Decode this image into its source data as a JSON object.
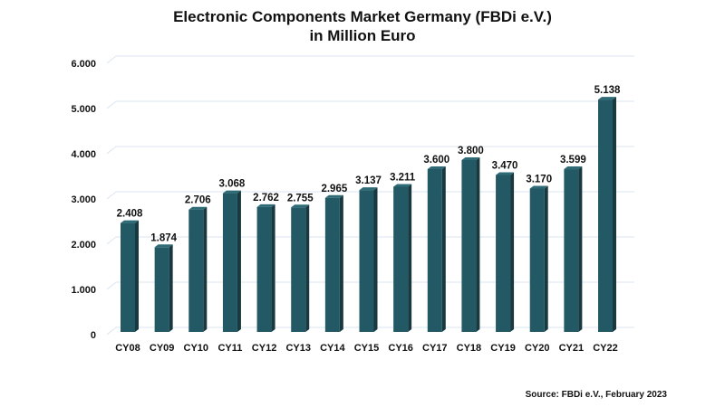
{
  "chart_data": {
    "type": "bar",
    "title": "Electronic Components Market Germany (FBDi e.V.)",
    "subtitle": "in Million Euro",
    "xlabel": "",
    "ylabel": "",
    "categories": [
      "CY08",
      "CY09",
      "CY10",
      "CY11",
      "CY12",
      "CY13",
      "CY14",
      "CY15",
      "CY16",
      "CY17",
      "CY18",
      "CY19",
      "CY20",
      "CY21",
      "CY22"
    ],
    "values": [
      2408,
      1874,
      2706,
      3068,
      2762,
      2755,
      2965,
      3137,
      3211,
      3600,
      3800,
      3470,
      3170,
      3599,
      5138
    ],
    "data_labels": [
      "2.408",
      "1.874",
      "2.706",
      "3.068",
      "2.762",
      "2.755",
      "2.965",
      "3.137",
      "3.211",
      "3.600",
      "3.800",
      "3.470",
      "3.170",
      "3.599",
      "5.138"
    ],
    "ylim": [
      0,
      6000
    ],
    "yticks": [
      0,
      1000,
      2000,
      3000,
      4000,
      5000,
      6000
    ],
    "ytick_labels": [
      "0",
      "1.000",
      "2.000",
      "3.000",
      "4.000",
      "5.000",
      "6.000"
    ],
    "grid": true,
    "legend": "none",
    "bar_style": "3d",
    "colors": {
      "bar_front": "#225964",
      "bar_side": "#17393f",
      "bar_top": "#2f6b76",
      "grid": "#dbe5f1"
    },
    "source": "Source: FBDi e.V., February 2023"
  }
}
